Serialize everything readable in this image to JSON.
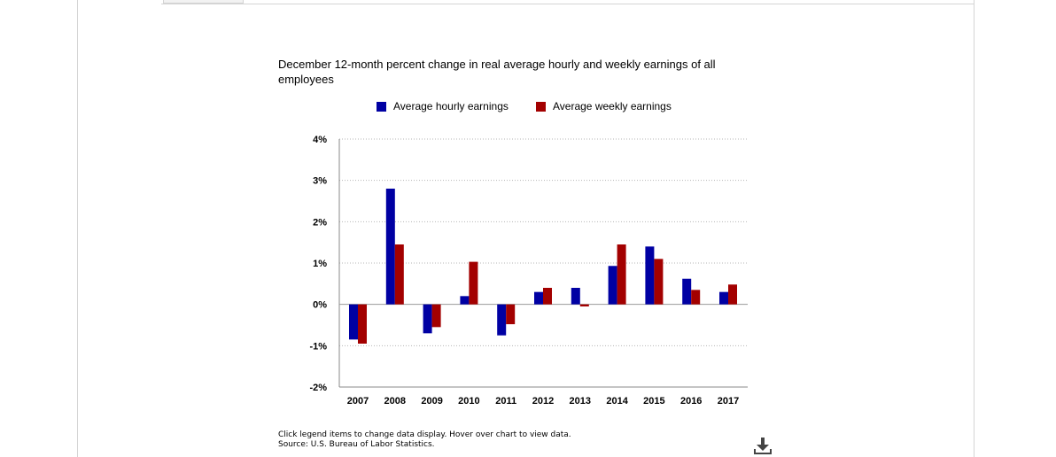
{
  "footnote": {
    "line1": "Click legend items to change data display. Hover over chart to view data.",
    "line2": "Source: U.S. Bureau of Labor Statistics."
  },
  "download_icon": "download-icon",
  "chart_data": {
    "type": "bar",
    "title": "December 12-month percent change in real average hourly and weekly earnings of all employees",
    "xlabel": "",
    "ylabel": "",
    "categories": [
      "2007",
      "2008",
      "2009",
      "2010",
      "2011",
      "2012",
      "2013",
      "2014",
      "2015",
      "2016",
      "2017"
    ],
    "series": [
      {
        "name": "Average hourly earnings",
        "color": "#0000a3",
        "values": [
          -0.85,
          2.8,
          -0.7,
          0.2,
          -0.75,
          0.3,
          0.4,
          0.93,
          1.4,
          0.62,
          0.3
        ]
      },
      {
        "name": "Average weekly earnings",
        "color": "#a30000",
        "values": [
          -0.95,
          1.45,
          -0.55,
          1.03,
          -0.48,
          0.4,
          -0.05,
          1.45,
          1.1,
          0.35,
          0.48
        ]
      }
    ],
    "ylim": [
      -2,
      4
    ],
    "yticks": [
      4,
      3,
      2,
      1,
      0,
      -1,
      -2
    ],
    "ytick_labels": [
      "4%",
      "3%",
      "2%",
      "1%",
      "0%",
      "-1%",
      "-2%"
    ],
    "grid": true,
    "legend_position": "top"
  }
}
